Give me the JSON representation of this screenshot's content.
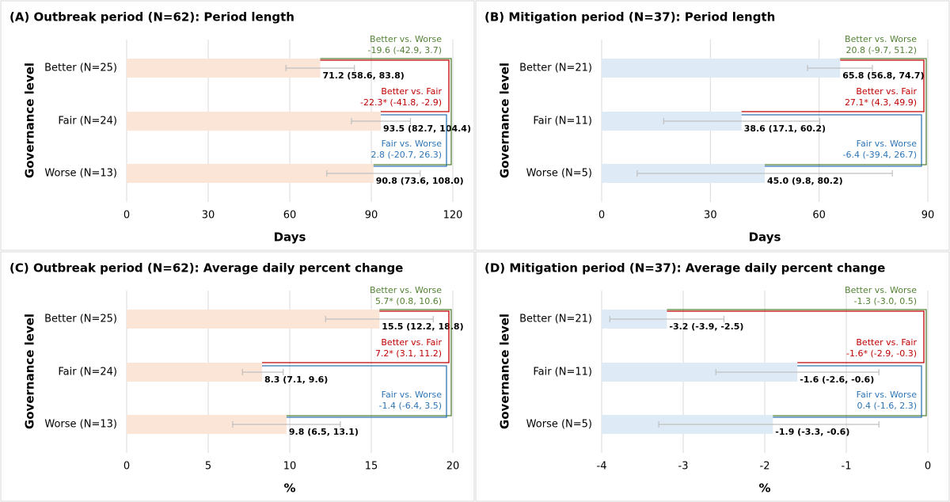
{
  "chart_data": [
    {
      "type": "bar",
      "orientation": "horizontal",
      "title": "(A) Outbreak period (N=62): Period length",
      "ylabel": "Governance level",
      "xlabel": "Days",
      "categories": [
        "Better (N=25)",
        "Fair (N=24)",
        "Worse (N=13)"
      ],
      "values": [
        71.2,
        93.5,
        90.8
      ],
      "ci": [
        [
          58.6,
          83.8
        ],
        [
          82.7,
          104.4
        ],
        [
          73.6,
          108
        ]
      ],
      "value_labels": [
        "71.2 (58.6, 83.8)",
        "93.5 (82.7, 104.4)",
        "90.8 (73.6, 108.0)"
      ],
      "color": "#fbe5d6",
      "xlim": [
        0,
        120
      ],
      "xticks": [
        0,
        30,
        60,
        90,
        120
      ],
      "grid": true,
      "comparisons": [
        {
          "label": "Better vs. Worse",
          "text": "-19.6 (-42.9, 3.7)",
          "color": "#548235"
        },
        {
          "label": "Better vs. Fair",
          "text": "-22.3* (-41.8, -2.9)",
          "color": "#c00000"
        },
        {
          "label": "Fair vs. Worse",
          "text": "2.8 (-20.7, 26.3)",
          "color": "#2e75b6"
        }
      ]
    },
    {
      "type": "bar",
      "orientation": "horizontal",
      "title": "(B) Mitigation period (N=37): Period length",
      "ylabel": "Governance level",
      "xlabel": "Days",
      "categories": [
        "Better (N=21)",
        "Fair (N=11)",
        "Worse (N=5)"
      ],
      "values": [
        65.8,
        38.6,
        45
      ],
      "ci": [
        [
          56.8,
          74.7
        ],
        [
          17.1,
          60.2
        ],
        [
          9.8,
          80.2
        ]
      ],
      "value_labels": [
        "65.8 (56.8, 74.7)",
        "38.6 (17.1, 60.2)",
        "45.0 (9.8, 80.2)"
      ],
      "color": "#deebf7",
      "xlim": [
        0,
        90
      ],
      "xticks": [
        0,
        30,
        60,
        90
      ],
      "grid": true,
      "comparisons": [
        {
          "label": "Better vs. Worse",
          "text": "20.8 (-9.7, 51.2)",
          "color": "#548235"
        },
        {
          "label": "Better vs. Fair",
          "text": "27.1* (4.3, 49.9)",
          "color": "#c00000"
        },
        {
          "label": "Fair vs. Worse",
          "text": "-6.4 (-39.4, 26.7)",
          "color": "#2e75b6"
        }
      ]
    },
    {
      "type": "bar",
      "orientation": "horizontal",
      "title": "(C) Outbreak period (N=62): Average daily percent change",
      "ylabel": "Governance level",
      "xlabel": "%",
      "categories": [
        "Better (N=25)",
        "Fair (N=24)",
        "Worse (N=13)"
      ],
      "values": [
        15.5,
        8.3,
        9.8
      ],
      "ci": [
        [
          12.2,
          18.8
        ],
        [
          7.1,
          9.6
        ],
        [
          6.5,
          13.1
        ]
      ],
      "value_labels": [
        "15.5 (12.2, 18.8)",
        "8.3 (7.1, 9.6)",
        "9.8 (6.5, 13.1)"
      ],
      "color": "#fbe5d6",
      "xlim": [
        0,
        20
      ],
      "xticks": [
        0,
        5,
        10,
        15,
        20
      ],
      "grid": true,
      "comparisons": [
        {
          "label": "Better vs. Worse",
          "text": "5.7* (0.8, 10.6)",
          "color": "#548235"
        },
        {
          "label": "Better vs. Fair",
          "text": "7.2* (3.1, 11.2)",
          "color": "#c00000"
        },
        {
          "label": "Fair vs. Worse",
          "text": "-1.4 (-6.4, 3.5)",
          "color": "#2e75b6"
        }
      ]
    },
    {
      "type": "bar",
      "orientation": "horizontal",
      "title": "(D) Mitigation period (N=37): Average daily percent change",
      "ylabel": "Governance level",
      "xlabel": "%",
      "categories": [
        "Better (N=21)",
        "Fair (N=11)",
        "Worse (N=5)"
      ],
      "values": [
        -3.2,
        -1.6,
        -1.9
      ],
      "ci": [
        [
          -3.9,
          -2.5
        ],
        [
          -2.6,
          -0.6
        ],
        [
          -3.3,
          -0.6
        ]
      ],
      "value_labels": [
        "-3.2 (-3.9, -2.5)",
        "-1.6 (-2.6, -0.6)",
        "-1.9 (-3.3, -0.6)"
      ],
      "color": "#deebf7",
      "xlim": [
        -4,
        0
      ],
      "xticks": [
        -4,
        -3,
        -2,
        -1,
        0
      ],
      "grid": true,
      "comparisons": [
        {
          "label": "Better vs. Worse",
          "text": "-1.3 (-3.0, 0.5)",
          "color": "#548235"
        },
        {
          "label": "Better vs. Fair",
          "text": "-1.6* (-2.9, -0.3)",
          "color": "#c00000"
        },
        {
          "label": "Fair vs. Worse",
          "text": "0.4 (-1.6, 2.3)",
          "color": "#2e75b6"
        }
      ]
    }
  ]
}
